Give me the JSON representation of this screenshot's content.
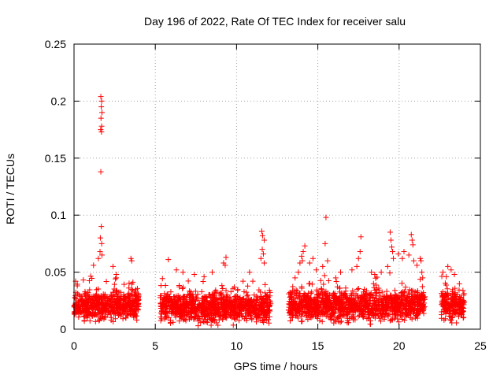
{
  "chart_data": {
    "type": "scatter",
    "title": "Day 196 of 2022, Rate Of TEC Index for receiver salu",
    "xlabel": "GPS time / hours",
    "ylabel": "ROTI / TECUs",
    "xlim": [
      0,
      25
    ],
    "ylim": [
      0,
      0.25
    ],
    "xticks": [
      0,
      5,
      10,
      15,
      20,
      25
    ],
    "yticks": [
      0,
      0.05,
      0.1,
      0.15,
      0.2,
      0.25
    ],
    "xtick_labels": [
      "0",
      "5",
      "10",
      "15",
      "20",
      "25"
    ],
    "ytick_labels": [
      "0",
      "0.05",
      "0.1",
      "0.15",
      "0.2",
      "0.25"
    ],
    "grid": true,
    "marker": "+",
    "color": "#ff0000",
    "segments": [
      {
        "x_start": 0.0,
        "x_end": 4.0,
        "y_base": 0.021,
        "y_spread": 0.012
      },
      {
        "x_start": 5.3,
        "x_end": 12.1,
        "y_base": 0.019,
        "y_spread": 0.012
      },
      {
        "x_start": 13.2,
        "x_end": 21.6,
        "y_base": 0.021,
        "y_spread": 0.013
      },
      {
        "x_start": 22.6,
        "x_end": 24.0,
        "y_base": 0.021,
        "y_spread": 0.012
      }
    ],
    "points": [
      [
        1.65,
        0.204
      ],
      [
        1.7,
        0.2
      ],
      [
        1.68,
        0.195
      ],
      [
        1.72,
        0.19
      ],
      [
        1.66,
        0.185
      ],
      [
        1.7,
        0.178
      ],
      [
        1.64,
        0.175
      ],
      [
        1.69,
        0.173
      ],
      [
        1.65,
        0.138
      ],
      [
        1.68,
        0.09
      ],
      [
        1.62,
        0.08
      ],
      [
        1.7,
        0.075
      ],
      [
        1.6,
        0.068
      ],
      [
        1.72,
        0.065
      ],
      [
        1.2,
        0.056
      ],
      [
        1.5,
        0.062
      ],
      [
        2.4,
        0.055
      ],
      [
        2.6,
        0.048
      ],
      [
        3.5,
        0.062
      ],
      [
        3.55,
        0.06
      ],
      [
        0.1,
        0.042
      ],
      [
        0.2,
        0.038
      ],
      [
        5.8,
        0.061
      ],
      [
        6.3,
        0.052
      ],
      [
        6.7,
        0.05
      ],
      [
        7.4,
        0.048
      ],
      [
        8.0,
        0.046
      ],
      [
        8.5,
        0.05
      ],
      [
        9.2,
        0.058
      ],
      [
        9.35,
        0.063
      ],
      [
        9.3,
        0.056
      ],
      [
        10.4,
        0.042
      ],
      [
        10.8,
        0.05
      ],
      [
        11.0,
        0.042
      ],
      [
        11.5,
        0.062
      ],
      [
        11.55,
        0.086
      ],
      [
        11.6,
        0.082
      ],
      [
        11.7,
        0.078
      ],
      [
        11.58,
        0.07
      ],
      [
        11.65,
        0.066
      ],
      [
        11.7,
        0.058
      ],
      [
        13.6,
        0.045
      ],
      [
        13.8,
        0.05
      ],
      [
        13.9,
        0.058
      ],
      [
        14.0,
        0.064
      ],
      [
        14.1,
        0.068
      ],
      [
        14.2,
        0.073
      ],
      [
        14.05,
        0.06
      ],
      [
        14.5,
        0.058
      ],
      [
        14.7,
        0.062
      ],
      [
        14.9,
        0.052
      ],
      [
        15.3,
        0.055
      ],
      [
        15.45,
        0.075
      ],
      [
        15.5,
        0.098
      ],
      [
        15.6,
        0.06
      ],
      [
        16.1,
        0.045
      ],
      [
        16.4,
        0.05
      ],
      [
        17.1,
        0.052
      ],
      [
        17.4,
        0.055
      ],
      [
        17.5,
        0.062
      ],
      [
        17.6,
        0.068
      ],
      [
        17.65,
        0.081
      ],
      [
        18.3,
        0.05
      ],
      [
        18.5,
        0.048
      ],
      [
        18.9,
        0.05
      ],
      [
        19.3,
        0.055
      ],
      [
        19.45,
        0.085
      ],
      [
        19.5,
        0.078
      ],
      [
        19.55,
        0.072
      ],
      [
        19.6,
        0.068
      ],
      [
        19.65,
        0.062
      ],
      [
        19.95,
        0.066
      ],
      [
        20.2,
        0.062
      ],
      [
        20.3,
        0.068
      ],
      [
        20.6,
        0.065
      ],
      [
        20.75,
        0.083
      ],
      [
        20.8,
        0.078
      ],
      [
        20.85,
        0.074
      ],
      [
        20.9,
        0.06
      ],
      [
        21.1,
        0.056
      ],
      [
        21.3,
        0.062
      ],
      [
        21.35,
        0.06
      ],
      [
        21.4,
        0.05
      ],
      [
        21.45,
        0.045
      ],
      [
        22.7,
        0.05
      ],
      [
        22.9,
        0.046
      ],
      [
        23.0,
        0.055
      ],
      [
        23.2,
        0.052
      ],
      [
        23.4,
        0.048
      ]
    ]
  }
}
